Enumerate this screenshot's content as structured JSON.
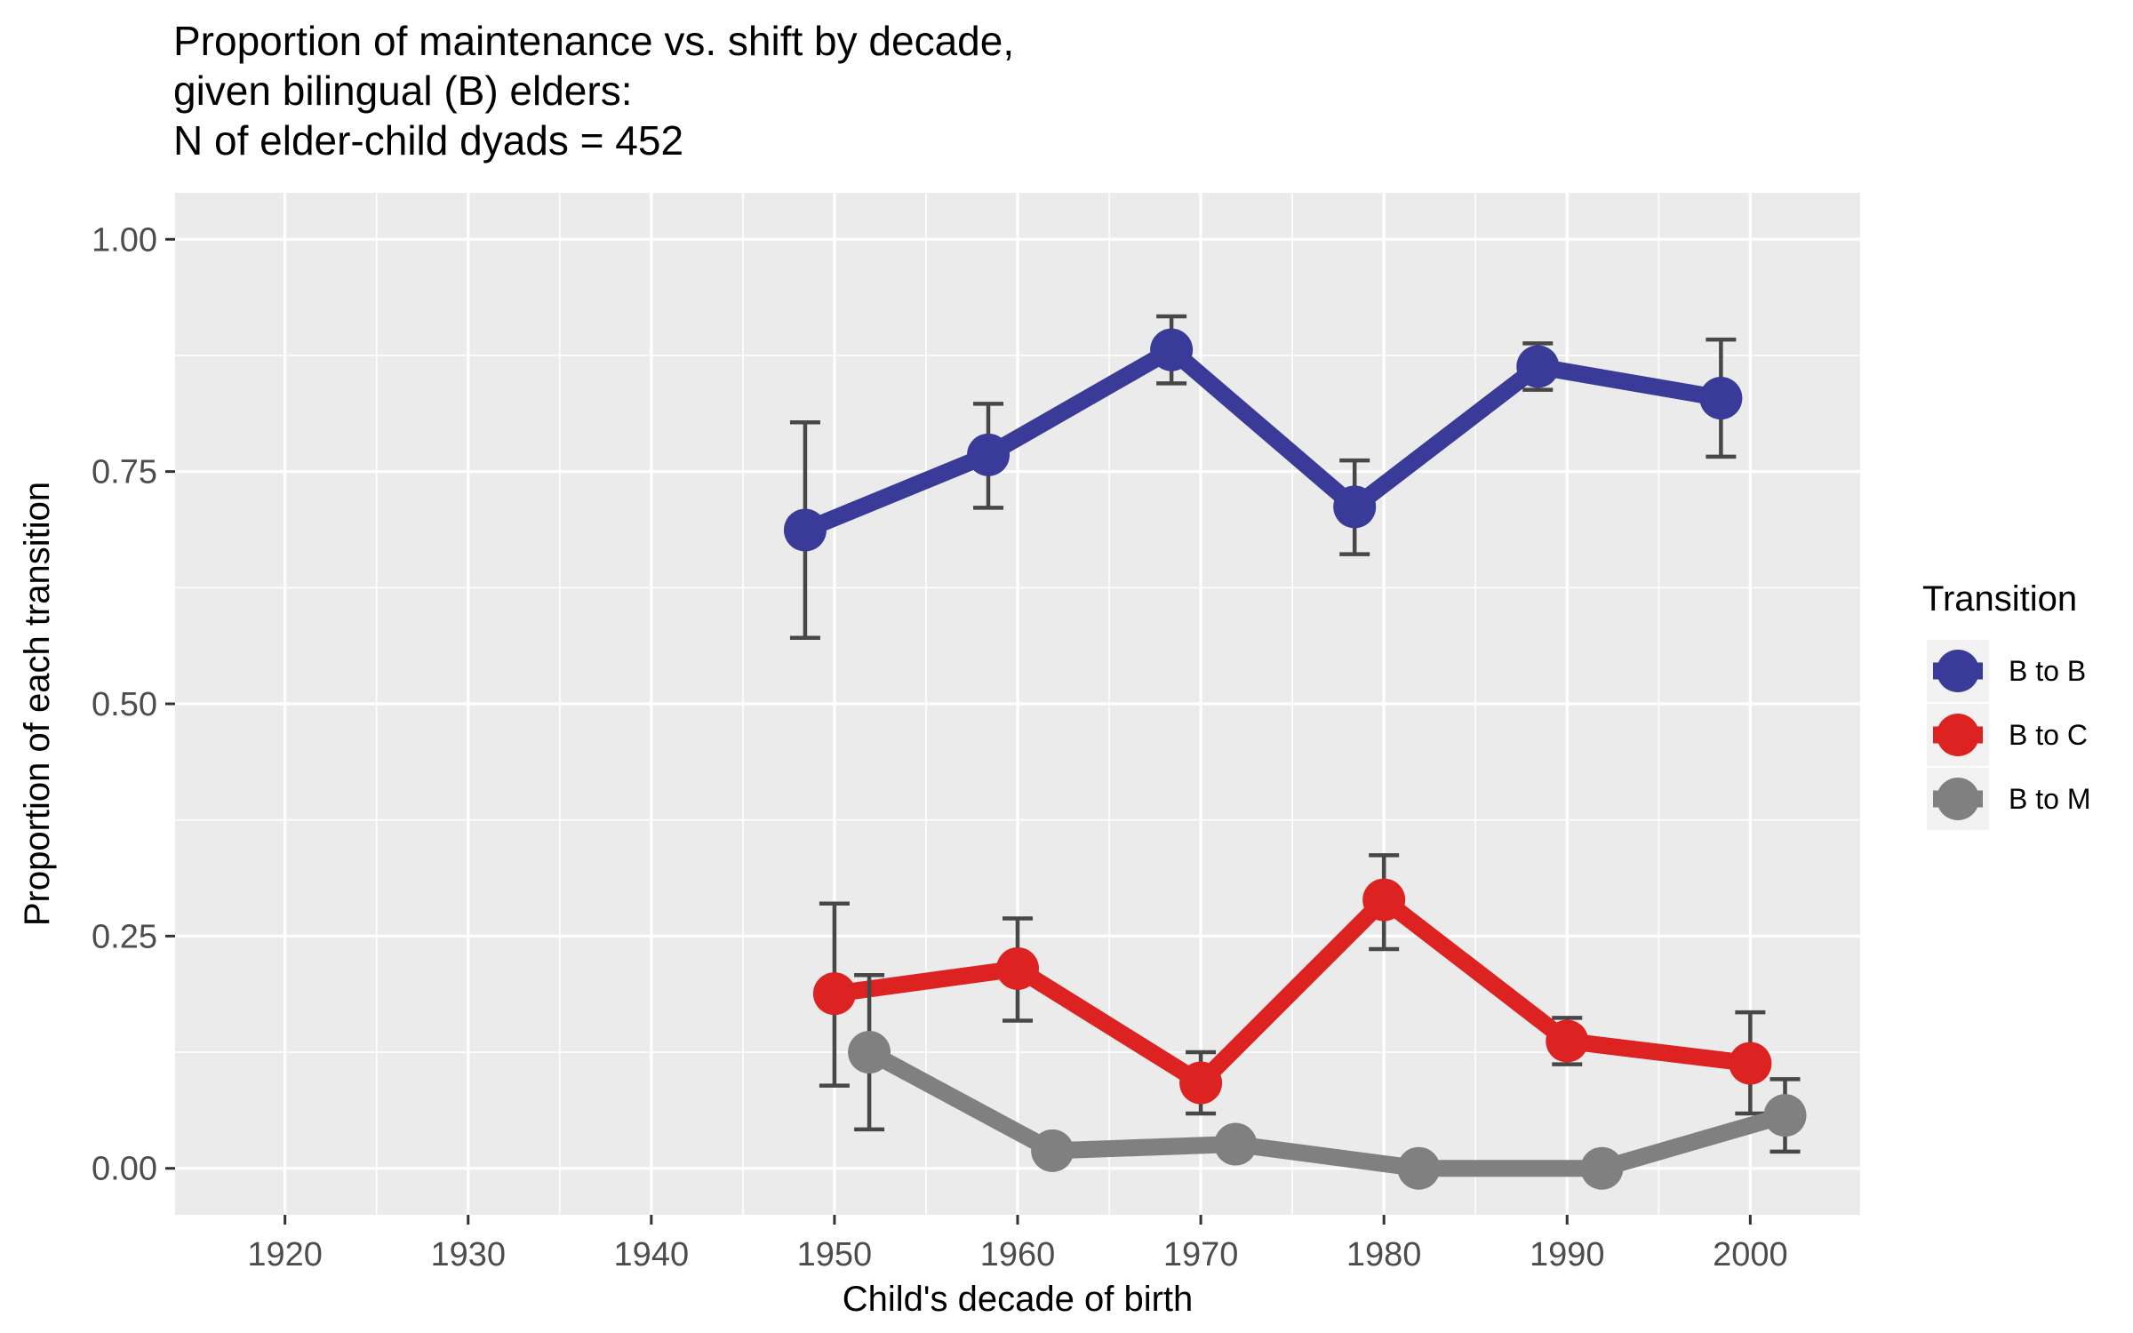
{
  "chart_data": {
    "type": "line",
    "title_lines": [
      "Proportion of maintenance vs. shift by decade,",
      "given bilingual (B) elders:",
      "N of elder-child dyads = 452"
    ],
    "xlabel": "Child's decade of birth",
    "ylabel": "Proportion of each transition",
    "xlim": [
      1914,
      2006
    ],
    "ylim": [
      -0.05,
      1.05
    ],
    "x_ticks": [
      1920,
      1930,
      1940,
      1950,
      1960,
      1970,
      1980,
      1990,
      2000
    ],
    "x_tick_labels": [
      "1920",
      "1930",
      "1940",
      "1950",
      "1960",
      "1970",
      "1980",
      "1990",
      "2000"
    ],
    "y_ticks": [
      0,
      0.25,
      0.5,
      0.75,
      1.0
    ],
    "y_tick_labels": [
      "0.00",
      "0.25",
      "0.50",
      "0.75",
      "1.00"
    ],
    "grid": true,
    "legend_title": "Transition",
    "legend_position": "right",
    "series": [
      {
        "name": "B to B",
        "color": "#3a3b98",
        "x": [
          1948.4,
          1958.4,
          1968.4,
          1978.4,
          1988.4,
          1998.4
        ],
        "y": [
          0.687,
          0.768,
          0.881,
          0.712,
          0.863,
          0.829
        ],
        "err_low": [
          0.571,
          0.711,
          0.845,
          0.661,
          0.838,
          0.766
        ],
        "err_high": [
          0.803,
          0.823,
          0.917,
          0.762,
          0.888,
          0.892
        ]
      },
      {
        "name": "B to C",
        "color": "#dd2222",
        "x": [
          1950.0,
          1960.0,
          1970.0,
          1980.0,
          1990.0,
          2000.0
        ],
        "y": [
          0.188,
          0.215,
          0.092,
          0.289,
          0.137,
          0.113
        ],
        "err_low": [
          0.089,
          0.159,
          0.059,
          0.236,
          0.112,
          0.059
        ],
        "err_high": [
          0.285,
          0.269,
          0.125,
          0.337,
          0.162,
          0.168
        ]
      },
      {
        "name": "B to M",
        "color": "#808080",
        "x": [
          1951.9,
          1961.9,
          1971.9,
          1981.9,
          1991.9,
          2001.9
        ],
        "y": [
          0.125,
          0.019,
          0.026,
          0.0,
          0.0,
          0.057
        ],
        "err_low": [
          0.042,
          0.013,
          0.019,
          0.0,
          0.0,
          0.018
        ],
        "err_high": [
          0.208,
          0.025,
          0.033,
          0.0,
          0.0,
          0.096
        ]
      }
    ]
  }
}
